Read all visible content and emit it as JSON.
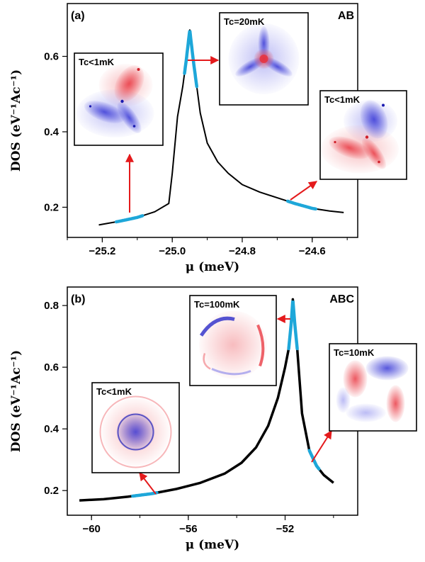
{
  "chart_data": [
    {
      "type": "line",
      "panel_label": "(a)",
      "corner_label": "AB",
      "xlabel": "μ (meV)",
      "ylabel": "DOS (eV⁻¹Ac⁻¹)",
      "xlim": [
        -25.3,
        -24.47
      ],
      "ylim": [
        0.12,
        0.74
      ],
      "xticks": [
        -25.2,
        -25.0,
        -24.8,
        -24.6
      ],
      "xtick_labels": [
        "−25.2",
        "−25.0",
        "−24.8",
        "−24.6"
      ],
      "yticks": [
        0.2,
        0.4,
        0.6
      ],
      "ytick_labels": [
        "0.2",
        "0.4",
        "0.6"
      ],
      "grid": false,
      "series": [
        {
          "x": [
            -25.21,
            -25.15,
            -25.1,
            -25.05,
            -25.01,
            -25.0,
            -24.985,
            -24.97,
            -24.96,
            -24.955,
            -24.95,
            -24.945,
            -24.94,
            -24.93,
            -24.92,
            -24.9,
            -24.87,
            -24.84,
            -24.8,
            -24.75,
            -24.7,
            -24.65,
            -24.6,
            -24.55,
            -24.51
          ],
          "y": [
            0.153,
            0.163,
            0.173,
            0.188,
            0.21,
            0.29,
            0.44,
            0.52,
            0.59,
            0.63,
            0.67,
            0.63,
            0.59,
            0.52,
            0.45,
            0.37,
            0.32,
            0.29,
            0.26,
            0.24,
            0.225,
            0.21,
            0.197,
            0.19,
            0.186
          ],
          "color": "#000000"
        }
      ],
      "highlights": [
        {
          "x": [
            -25.16,
            -25.085
          ],
          "color": "#1ea7d9"
        },
        {
          "x": [
            -24.965,
            -24.93
          ],
          "color": "#1ea7d9"
        },
        {
          "x": [
            -24.67,
            -24.59
          ],
          "color": "#1ea7d9"
        }
      ],
      "insets": [
        {
          "label": "Tc<1mK",
          "pattern": "two-lobes"
        },
        {
          "label": "Tc=20mK",
          "pattern": "three-arms"
        },
        {
          "label": "Tc<1mK",
          "pattern": "two-lobes-flipped"
        }
      ]
    },
    {
      "type": "line",
      "panel_label": "(b)",
      "corner_label": "ABC",
      "xlabel": "μ (meV)",
      "ylabel": "DOS (eV⁻¹Ac⁻¹)",
      "xlim": [
        -61.0,
        -49.0
      ],
      "ylim": [
        0.12,
        0.86
      ],
      "xticks": [
        -60,
        -56,
        -52
      ],
      "xtick_labels": [
        "−60",
        "−56",
        "−52"
      ],
      "yticks": [
        0.2,
        0.4,
        0.6,
        0.8
      ],
      "ytick_labels": [
        "0.2",
        "0.4",
        "0.6",
        "0.8"
      ],
      "grid": false,
      "series": [
        {
          "x": [
            -60.5,
            -59.5,
            -58.5,
            -57.5,
            -56.5,
            -55.5,
            -54.5,
            -53.8,
            -53.2,
            -52.7,
            -52.3,
            -52.0,
            -51.85,
            -51.75,
            -51.68,
            -51.6,
            -51.5,
            -51.3,
            -51.0,
            -50.7,
            -50.4,
            -50.0
          ],
          "y": [
            0.168,
            0.172,
            0.18,
            0.19,
            0.205,
            0.225,
            0.255,
            0.29,
            0.34,
            0.41,
            0.5,
            0.6,
            0.66,
            0.74,
            0.82,
            0.74,
            0.66,
            0.45,
            0.33,
            0.28,
            0.25,
            0.225
          ],
          "color": "#000000"
        }
      ],
      "highlights": [
        {
          "x": [
            -58.3,
            -57.3
          ],
          "color": "#1ea7d9"
        },
        {
          "x": [
            -51.85,
            -51.5
          ],
          "color": "#1ea7d9"
        },
        {
          "x": [
            -51.0,
            -50.6
          ],
          "color": "#1ea7d9"
        }
      ],
      "insets": [
        {
          "label": "Tc<1mK",
          "pattern": "ring"
        },
        {
          "label": "Tc=100mK",
          "pattern": "triangle-arcs"
        },
        {
          "label": "Tc=10mK",
          "pattern": "triangle-lobes"
        }
      ]
    }
  ]
}
